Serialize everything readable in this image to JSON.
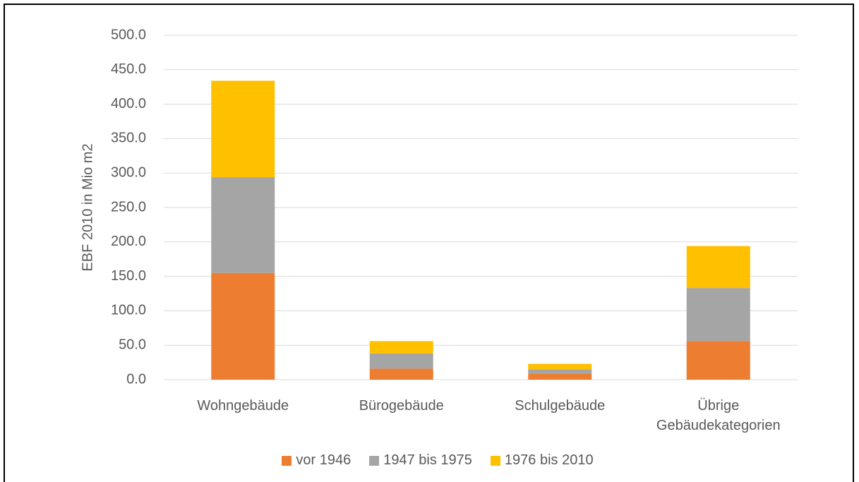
{
  "chart_data": {
    "type": "bar",
    "stacked": true,
    "y_label": "EBF 2010 in Mio m2",
    "categories": [
      "Wohngebäude",
      "Bürogebäude",
      "Schulgebäude",
      "Übrige Gebäudekategorien"
    ],
    "series": [
      {
        "name": "vor 1946",
        "color": "#ed7d31",
        "values": [
          155,
          16,
          9,
          56
        ]
      },
      {
        "name": "1947 bis 1975",
        "color": "#a5a5a5",
        "values": [
          139,
          22,
          6,
          77
        ]
      },
      {
        "name": "1976 bis 2010",
        "color": "#ffc000",
        "values": [
          140,
          18,
          8,
          61
        ]
      }
    ],
    "ylim": [
      0,
      500
    ],
    "yticks": [
      {
        "value": 0,
        "label": "0.0"
      },
      {
        "value": 50,
        "label": "50.0"
      },
      {
        "value": 100,
        "label": "100.0"
      },
      {
        "value": 150,
        "label": "150.0"
      },
      {
        "value": 200,
        "label": "200.0"
      },
      {
        "value": 250,
        "label": "250.0"
      },
      {
        "value": 300,
        "label": "300.0"
      },
      {
        "value": 350,
        "label": "350.0"
      },
      {
        "value": 400,
        "label": "400.0"
      },
      {
        "value": 450,
        "label": "450.0"
      },
      {
        "value": 500,
        "label": "500.0"
      }
    ],
    "grid": true,
    "legend": "bottom"
  }
}
